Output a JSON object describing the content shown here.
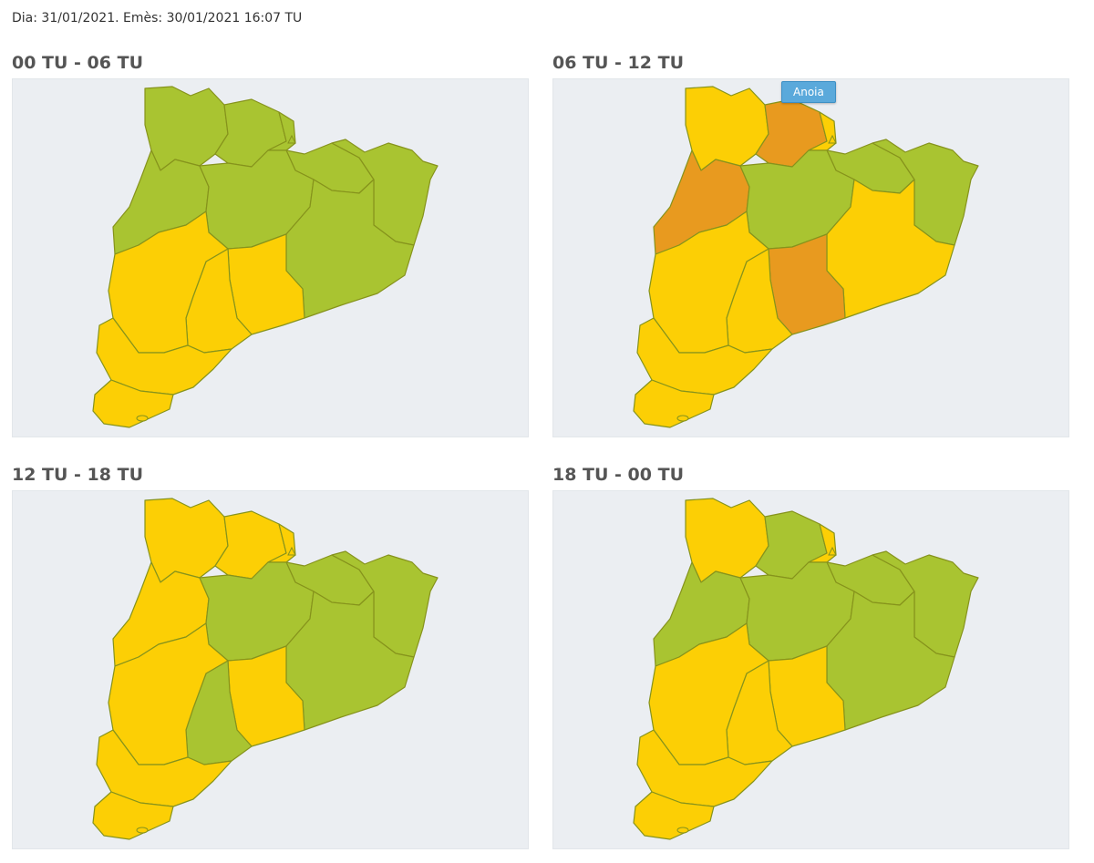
{
  "header": {
    "text": "Dia: 31/01/2021. Emès: 30/01/2021 16:07 TU"
  },
  "colors": {
    "green": "#a9c431",
    "yellow": "#fccf05",
    "orange": "#e89a1f",
    "border": "#86931c",
    "background": "#ebeef2"
  },
  "panels": [
    {
      "title": "00 TU - 06 TU",
      "tooltip": null,
      "regions": [
        "green",
        "green",
        "green",
        "green",
        "green",
        "green",
        "green",
        "green",
        "yellow",
        "yellow",
        "yellow",
        "yellow",
        "yellow"
      ]
    },
    {
      "title": "06 TU - 12 TU",
      "tooltip": "Anoia",
      "regions": [
        "yellow",
        "orange",
        "orange",
        "yellow",
        "green",
        "green",
        "green",
        "yellow",
        "orange",
        "yellow",
        "yellow",
        "yellow",
        "yellow"
      ]
    },
    {
      "title": "12 TU - 18 TU",
      "tooltip": null,
      "regions": [
        "yellow",
        "yellow",
        "yellow",
        "yellow",
        "green",
        "green",
        "green",
        "green",
        "yellow",
        "green",
        "yellow",
        "yellow",
        "yellow"
      ]
    },
    {
      "title": "18 TU - 00 TU",
      "tooltip": null,
      "regions": [
        "yellow",
        "green",
        "green",
        "yellow",
        "green",
        "green",
        "green",
        "green",
        "yellow",
        "yellow",
        "yellow",
        "yellow",
        "yellow"
      ]
    }
  ]
}
